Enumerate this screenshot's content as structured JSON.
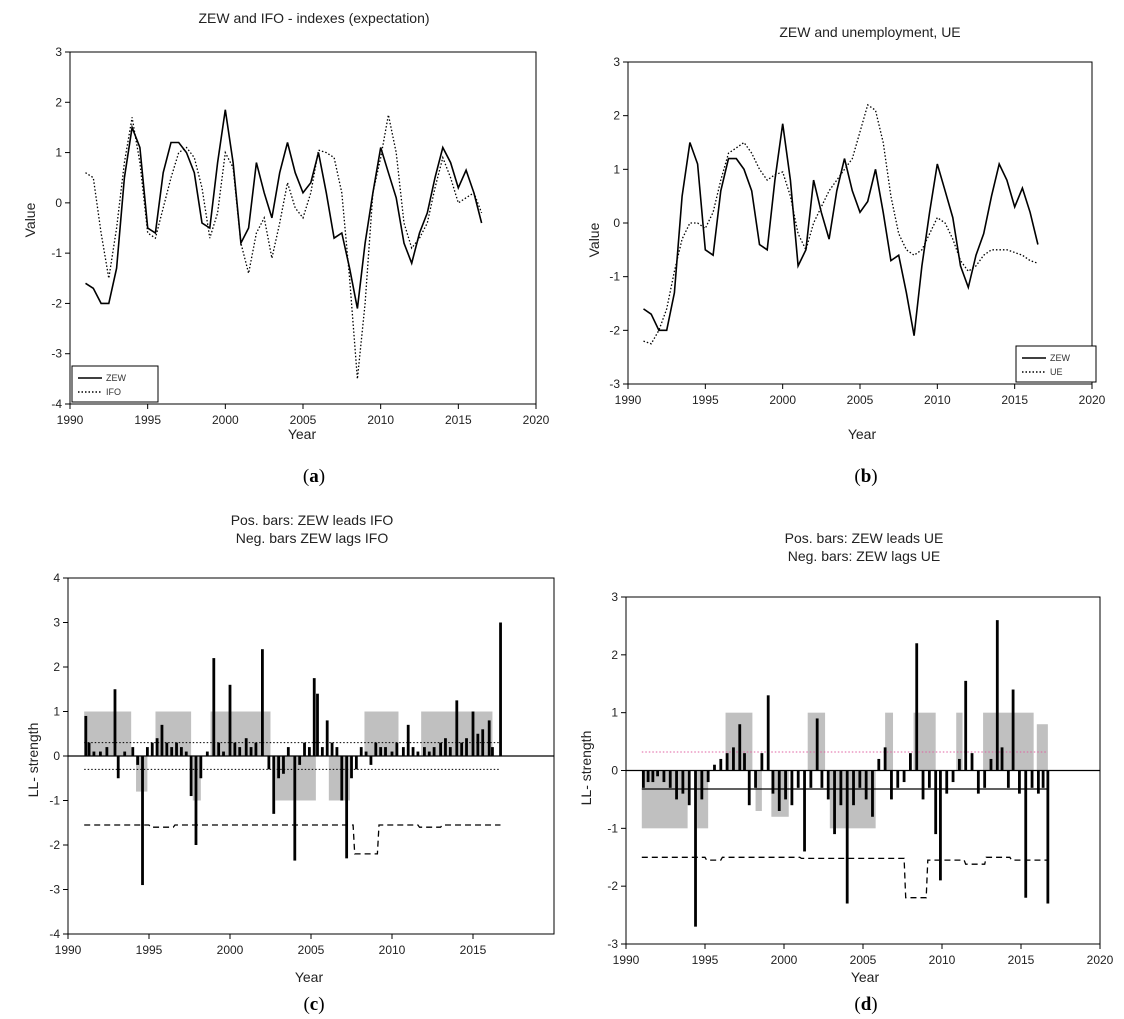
{
  "chart_data": [
    {
      "type": "line",
      "panel": "a",
      "title": "ZEW and IFO - indexes  (expectation)",
      "xlabel": "Year",
      "ylabel": "Value",
      "xlim": [
        1990,
        2020
      ],
      "ylim": [
        -4,
        3
      ],
      "xticks": [
        "1990",
        "1995",
        "2000",
        "2005",
        "2010",
        "2015",
        "2020"
      ],
      "yticks": [
        "3",
        "2",
        "1",
        "0",
        "-1",
        "-2",
        "-3",
        "-4"
      ],
      "legend_position": "bottom-left",
      "grid": false,
      "series": [
        {
          "name": "ZEW",
          "style": "solid",
          "color": "#000000",
          "x": [
            1991.0,
            1991.5,
            1992.0,
            1992.5,
            1993.0,
            1993.5,
            1994.0,
            1994.5,
            1995.0,
            1995.5,
            1996.0,
            1996.5,
            1997.0,
            1997.5,
            1998.0,
            1998.5,
            1999.0,
            1999.5,
            2000.0,
            2000.5,
            2001.0,
            2001.5,
            2002.0,
            2002.5,
            2003.0,
            2003.5,
            2004.0,
            2004.5,
            2005.0,
            2005.5,
            2006.0,
            2006.5,
            2007.0,
            2007.5,
            2008.0,
            2008.5,
            2009.0,
            2009.5,
            2010.0,
            2010.5,
            2011.0,
            2011.5,
            2012.0,
            2012.5,
            2013.0,
            2013.5,
            2014.0,
            2014.5,
            2015.0,
            2015.5,
            2016.0,
            2016.5
          ],
          "y": [
            -1.6,
            -1.7,
            -2.0,
            -2.0,
            -1.3,
            0.5,
            1.5,
            1.1,
            -0.5,
            -0.6,
            0.6,
            1.2,
            1.2,
            1.0,
            0.6,
            -0.4,
            -0.5,
            0.8,
            1.85,
            0.8,
            -0.8,
            -0.5,
            0.8,
            0.2,
            -0.3,
            0.6,
            1.2,
            0.6,
            0.2,
            0.4,
            1.0,
            0.2,
            -0.7,
            -0.6,
            -1.3,
            -2.1,
            -0.8,
            0.2,
            1.1,
            0.6,
            0.1,
            -0.8,
            -1.2,
            -0.6,
            -0.2,
            0.5,
            1.1,
            0.8,
            0.3,
            0.65,
            0.2,
            -0.4
          ]
        },
        {
          "name": "IFO",
          "style": "dotted",
          "color": "#000000",
          "x": [
            1991.0,
            1991.5,
            1992.0,
            1992.5,
            1993.0,
            1993.5,
            1994.0,
            1994.5,
            1995.0,
            1995.5,
            1996.0,
            1996.5,
            1997.0,
            1997.5,
            1998.0,
            1998.5,
            1999.0,
            1999.5,
            2000.0,
            2000.5,
            2001.0,
            2001.5,
            2002.0,
            2002.5,
            2003.0,
            2003.5,
            2004.0,
            2004.5,
            2005.0,
            2005.5,
            2006.0,
            2006.5,
            2007.0,
            2007.5,
            2008.0,
            2008.5,
            2009.0,
            2009.5,
            2010.0,
            2010.5,
            2011.0,
            2011.5,
            2012.0,
            2012.5,
            2013.0,
            2013.5,
            2014.0,
            2014.5,
            2015.0,
            2015.5,
            2016.0,
            2016.5
          ],
          "y": [
            0.6,
            0.5,
            -0.6,
            -1.5,
            -0.5,
            0.8,
            1.7,
            0.8,
            -0.6,
            -0.7,
            -0.1,
            0.5,
            1.0,
            1.1,
            0.9,
            0.3,
            -0.7,
            -0.2,
            1.0,
            0.7,
            -0.8,
            -1.4,
            -0.6,
            -0.3,
            -1.1,
            -0.4,
            0.4,
            -0.1,
            -0.3,
            0.2,
            1.05,
            1.0,
            0.9,
            0.2,
            -1.5,
            -3.5,
            -2.0,
            0.2,
            0.9,
            1.75,
            1.0,
            -0.4,
            -0.9,
            -0.7,
            -0.4,
            0.3,
            0.9,
            0.5,
            0.0,
            0.1,
            0.2,
            -0.2
          ]
        }
      ]
    },
    {
      "type": "line",
      "panel": "b",
      "title": "ZEW and unemployment, UE",
      "xlabel": "Year",
      "ylabel": "Value",
      "xlim": [
        1990,
        2020
      ],
      "ylim": [
        -3,
        3
      ],
      "xticks": [
        "1990",
        "1995",
        "2000",
        "2005",
        "2010",
        "2015",
        "2020"
      ],
      "yticks": [
        "3",
        "2",
        "1",
        "0",
        "-1",
        "-2",
        "-3"
      ],
      "legend_position": "bottom-right",
      "grid": false,
      "series": [
        {
          "name": "ZEW",
          "style": "solid",
          "color": "#000000",
          "x": [
            1991.0,
            1991.5,
            1992.0,
            1992.5,
            1993.0,
            1993.5,
            1994.0,
            1994.5,
            1995.0,
            1995.5,
            1996.0,
            1996.5,
            1997.0,
            1997.5,
            1998.0,
            1998.5,
            1999.0,
            1999.5,
            2000.0,
            2000.5,
            2001.0,
            2001.5,
            2002.0,
            2002.5,
            2003.0,
            2003.5,
            2004.0,
            2004.5,
            2005.0,
            2005.5,
            2006.0,
            2006.5,
            2007.0,
            2007.5,
            2008.0,
            2008.5,
            2009.0,
            2009.5,
            2010.0,
            2010.5,
            2011.0,
            2011.5,
            2012.0,
            2012.5,
            2013.0,
            2013.5,
            2014.0,
            2014.5,
            2015.0,
            2015.5,
            2016.0,
            2016.5
          ],
          "y": [
            -1.6,
            -1.7,
            -2.0,
            -2.0,
            -1.3,
            0.5,
            1.5,
            1.1,
            -0.5,
            -0.6,
            0.6,
            1.2,
            1.2,
            1.0,
            0.6,
            -0.4,
            -0.5,
            0.8,
            1.85,
            0.8,
            -0.8,
            -0.5,
            0.8,
            0.2,
            -0.3,
            0.6,
            1.2,
            0.6,
            0.2,
            0.4,
            1.0,
            0.2,
            -0.7,
            -0.6,
            -1.3,
            -2.1,
            -0.8,
            0.2,
            1.1,
            0.6,
            0.1,
            -0.8,
            -1.2,
            -0.6,
            -0.2,
            0.5,
            1.1,
            0.8,
            0.3,
            0.65,
            0.2,
            -0.4
          ]
        },
        {
          "name": "UE",
          "style": "dotted",
          "color": "#000000",
          "x": [
            1991.0,
            1991.5,
            1992.0,
            1992.5,
            1993.0,
            1993.5,
            1994.0,
            1994.5,
            1995.0,
            1995.5,
            1996.0,
            1996.5,
            1997.0,
            1997.5,
            1998.0,
            1998.5,
            1999.0,
            1999.5,
            2000.0,
            2000.5,
            2001.0,
            2001.5,
            2002.0,
            2002.5,
            2003.0,
            2003.5,
            2004.0,
            2004.5,
            2005.0,
            2005.5,
            2006.0,
            2006.5,
            2007.0,
            2007.5,
            2008.0,
            2008.5,
            2009.0,
            2009.5,
            2010.0,
            2010.5,
            2011.0,
            2011.5,
            2012.0,
            2012.5,
            2013.0,
            2013.5,
            2014.0,
            2014.5,
            2015.0,
            2015.5,
            2016.0,
            2016.5
          ],
          "y": [
            -2.2,
            -2.25,
            -2.0,
            -1.6,
            -0.9,
            -0.3,
            0.0,
            0.0,
            -0.1,
            0.2,
            0.8,
            1.3,
            1.4,
            1.5,
            1.3,
            1.0,
            0.8,
            0.9,
            0.95,
            0.5,
            -0.2,
            -0.5,
            0.0,
            0.3,
            0.6,
            0.8,
            1.0,
            1.2,
            1.7,
            2.2,
            2.1,
            1.5,
            0.5,
            -0.2,
            -0.5,
            -0.6,
            -0.5,
            -0.2,
            0.1,
            0.0,
            -0.3,
            -0.7,
            -0.9,
            -0.8,
            -0.6,
            -0.5,
            -0.5,
            -0.5,
            -0.55,
            -0.6,
            -0.7,
            -0.75
          ]
        }
      ]
    },
    {
      "type": "bar",
      "panel": "c",
      "title": "Pos. bars: ZEW leads IFO",
      "subtitle": "Neg. bars ZEW lags IFO",
      "xlabel": "Year",
      "ylabel": "LL- strength",
      "xlim": [
        1990,
        2020
      ],
      "ylim": [
        -4,
        4
      ],
      "xticks": [
        "1990",
        "1995",
        "2000",
        "2005",
        "2010",
        "2015"
      ],
      "yticks": [
        "4",
        "3",
        "2",
        "1",
        "0",
        "-1",
        "-2",
        "-3",
        "-4"
      ],
      "grid": false,
      "bars": {
        "x": [
          1991.1,
          1991.3,
          1991.6,
          1992.0,
          1992.4,
          1992.9,
          1993.1,
          1993.5,
          1994.0,
          1994.3,
          1994.6,
          1994.9,
          1995.2,
          1995.5,
          1995.8,
          1996.1,
          1996.4,
          1996.7,
          1997.0,
          1997.3,
          1997.6,
          1997.9,
          1998.2,
          1998.6,
          1999.0,
          1999.3,
          1999.6,
          2000.0,
          2000.3,
          2000.6,
          2001.0,
          2001.3,
          2001.6,
          2002.0,
          2002.4,
          2002.7,
          2003.0,
          2003.3,
          2003.6,
          2004.0,
          2004.3,
          2004.6,
          2004.9,
          2005.2,
          2005.4,
          2005.7,
          2006.0,
          2006.3,
          2006.6,
          2006.9,
          2007.2,
          2007.5,
          2007.8,
          2008.1,
          2008.4,
          2008.7,
          2009.0,
          2009.3,
          2009.6,
          2010.0,
          2010.3,
          2010.7,
          2011.0,
          2011.3,
          2011.6,
          2012.0,
          2012.3,
          2012.6,
          2013.0,
          2013.3,
          2013.6,
          2014.0,
          2014.3,
          2014.6,
          2015.0,
          2015.3,
          2015.6,
          2016.0,
          2016.2,
          2016.7
        ],
        "values": [
          0.9,
          0.3,
          0.1,
          0.1,
          0.2,
          1.5,
          -0.5,
          0.1,
          0.2,
          -0.2,
          -2.9,
          0.2,
          0.3,
          0.4,
          0.7,
          0.3,
          0.2,
          0.3,
          0.2,
          0.1,
          -0.9,
          -2.0,
          -0.5,
          0.1,
          2.2,
          0.3,
          0.1,
          1.6,
          0.3,
          0.2,
          0.4,
          0.2,
          0.3,
          2.4,
          -0.3,
          -1.3,
          -0.5,
          -0.4,
          0.2,
          -2.35,
          -0.2,
          0.3,
          0.2,
          1.75,
          1.4,
          0.2,
          0.8,
          0.3,
          0.2,
          -1.0,
          -2.3,
          -0.5,
          -0.3,
          0.2,
          0.1,
          -0.2,
          0.3,
          0.2,
          0.2,
          0.1,
          0.3,
          0.2,
          0.7,
          0.2,
          0.1,
          0.2,
          0.1,
          0.2,
          0.3,
          0.4,
          0.2,
          1.25,
          0.3,
          0.4,
          1.0,
          0.5,
          0.6,
          0.8,
          0.2,
          3.0
        ]
      },
      "significance_bands": [
        [
          1991.0,
          1993.9,
          1.0
        ],
        [
          1994.2,
          1994.9,
          -0.8
        ],
        [
          1995.4,
          1997.6,
          1.0
        ],
        [
          1997.7,
          1998.2,
          -1.0
        ],
        [
          1998.8,
          2002.5,
          1.0
        ],
        [
          2002.8,
          2005.3,
          -1.0
        ],
        [
          2006.1,
          2007.4,
          -1.0
        ],
        [
          2008.3,
          2010.4,
          1.0
        ],
        [
          2011.8,
          2016.2,
          1.0
        ]
      ],
      "thresholds": [
        0.3,
        -0.3
      ],
      "dashed_level": {
        "x": [
          1991.0,
          1995.0,
          1995.1,
          1996.5,
          1996.6,
          2007.6,
          2007.7,
          2009.1,
          2009.2,
          2011.6,
          2011.7,
          2013.0,
          2013.1,
          2016.7
        ],
        "y": [
          -1.55,
          -1.55,
          -1.6,
          -1.6,
          -1.55,
          -1.55,
          -2.2,
          -2.2,
          -1.55,
          -1.55,
          -1.6,
          -1.6,
          -1.55,
          -1.55
        ]
      }
    },
    {
      "type": "bar",
      "panel": "d",
      "title": "Pos. bars: ZEW leads UE",
      "subtitle": "Neg. bars: ZEW lags UE",
      "xlabel": "Year",
      "ylabel": "LL- strength",
      "xlim": [
        1990,
        2020
      ],
      "ylim": [
        -3,
        3
      ],
      "xticks": [
        "1990",
        "1995",
        "2000",
        "2005",
        "2010",
        "2015",
        "2020"
      ],
      "yticks": [
        "3",
        "2",
        "1",
        "0",
        "-1",
        "-2",
        "-3"
      ],
      "grid": false,
      "bars": {
        "x": [
          1991.1,
          1991.4,
          1991.7,
          1992.0,
          1992.4,
          1992.8,
          1993.2,
          1993.6,
          1994.0,
          1994.4,
          1994.8,
          1995.2,
          1995.6,
          1996.0,
          1996.4,
          1996.8,
          1997.2,
          1997.5,
          1997.8,
          1998.2,
          1998.6,
          1999.0,
          1999.3,
          1999.7,
          2000.1,
          2000.5,
          2000.9,
          2001.3,
          2001.7,
          2002.1,
          2002.4,
          2002.8,
          2003.2,
          2003.6,
          2004.0,
          2004.4,
          2004.8,
          2005.2,
          2005.6,
          2006.0,
          2006.4,
          2006.8,
          2007.2,
          2007.6,
          2008.0,
          2008.4,
          2008.8,
          2009.2,
          2009.6,
          2009.9,
          2010.3,
          2010.7,
          2011.1,
          2011.5,
          2011.9,
          2012.3,
          2012.7,
          2013.1,
          2013.5,
          2013.8,
          2014.2,
          2014.5,
          2014.9,
          2015.3,
          2015.7,
          2016.1,
          2016.4,
          2016.7
        ],
        "values": [
          -0.3,
          -0.2,
          -0.2,
          -0.1,
          -0.2,
          -0.3,
          -0.5,
          -0.4,
          -0.6,
          -2.7,
          -0.5,
          -0.2,
          0.1,
          0.2,
          0.3,
          0.4,
          0.8,
          0.3,
          -0.6,
          -0.3,
          0.3,
          1.3,
          -0.4,
          -0.7,
          -0.5,
          -0.6,
          -0.3,
          -1.4,
          -0.3,
          0.9,
          -0.3,
          -0.5,
          -1.1,
          -0.6,
          -2.3,
          -0.6,
          -0.3,
          -0.5,
          -0.8,
          0.2,
          0.4,
          -0.5,
          -0.3,
          -0.2,
          0.3,
          2.2,
          -0.5,
          -0.3,
          -1.1,
          -1.9,
          -0.4,
          -0.2,
          0.2,
          1.55,
          0.3,
          -0.4,
          -0.3,
          0.2,
          2.6,
          0.4,
          -0.3,
          1.4,
          -0.4,
          -2.2,
          -0.3,
          -0.4,
          -0.3,
          -2.3
        ]
      },
      "significance_bands": [
        [
          1991.0,
          1993.9,
          -1.0
        ],
        [
          1994.5,
          1995.2,
          -1.0
        ],
        [
          1996.3,
          1998.0,
          1.0
        ],
        [
          1998.2,
          1998.6,
          -0.7
        ],
        [
          1999.2,
          2000.3,
          -0.8
        ],
        [
          2001.5,
          2002.6,
          1.0
        ],
        [
          2002.9,
          2005.8,
          -1.0
        ],
        [
          2006.4,
          2006.9,
          1.0
        ],
        [
          2008.2,
          2009.6,
          1.0
        ],
        [
          2010.9,
          2011.3,
          1.0
        ],
        [
          2012.6,
          2015.8,
          1.0
        ],
        [
          2016.0,
          2016.7,
          0.8
        ]
      ],
      "thresholds": [
        0.32,
        -0.32
      ],
      "dashed_level": {
        "x": [
          1991.0,
          1995.0,
          1995.1,
          1996.0,
          1996.1,
          2001.0,
          2001.1,
          2007.6,
          2007.7,
          2009.0,
          2009.1,
          2011.4,
          2011.5,
          2012.7,
          2012.8,
          2014.3,
          2014.4,
          2016.7
        ],
        "y": [
          -1.5,
          -1.5,
          -1.55,
          -1.55,
          -1.5,
          -1.5,
          -1.52,
          -1.52,
          -2.2,
          -2.2,
          -1.55,
          -1.55,
          -1.62,
          -1.62,
          -1.5,
          -1.5,
          -1.55,
          -1.55
        ]
      }
    }
  ],
  "captions": [
    "a",
    "b",
    "c",
    "d"
  ],
  "colors": {
    "band": "#c0c0c0",
    "bar": "#000000",
    "threshold_d": "#e060a0"
  }
}
